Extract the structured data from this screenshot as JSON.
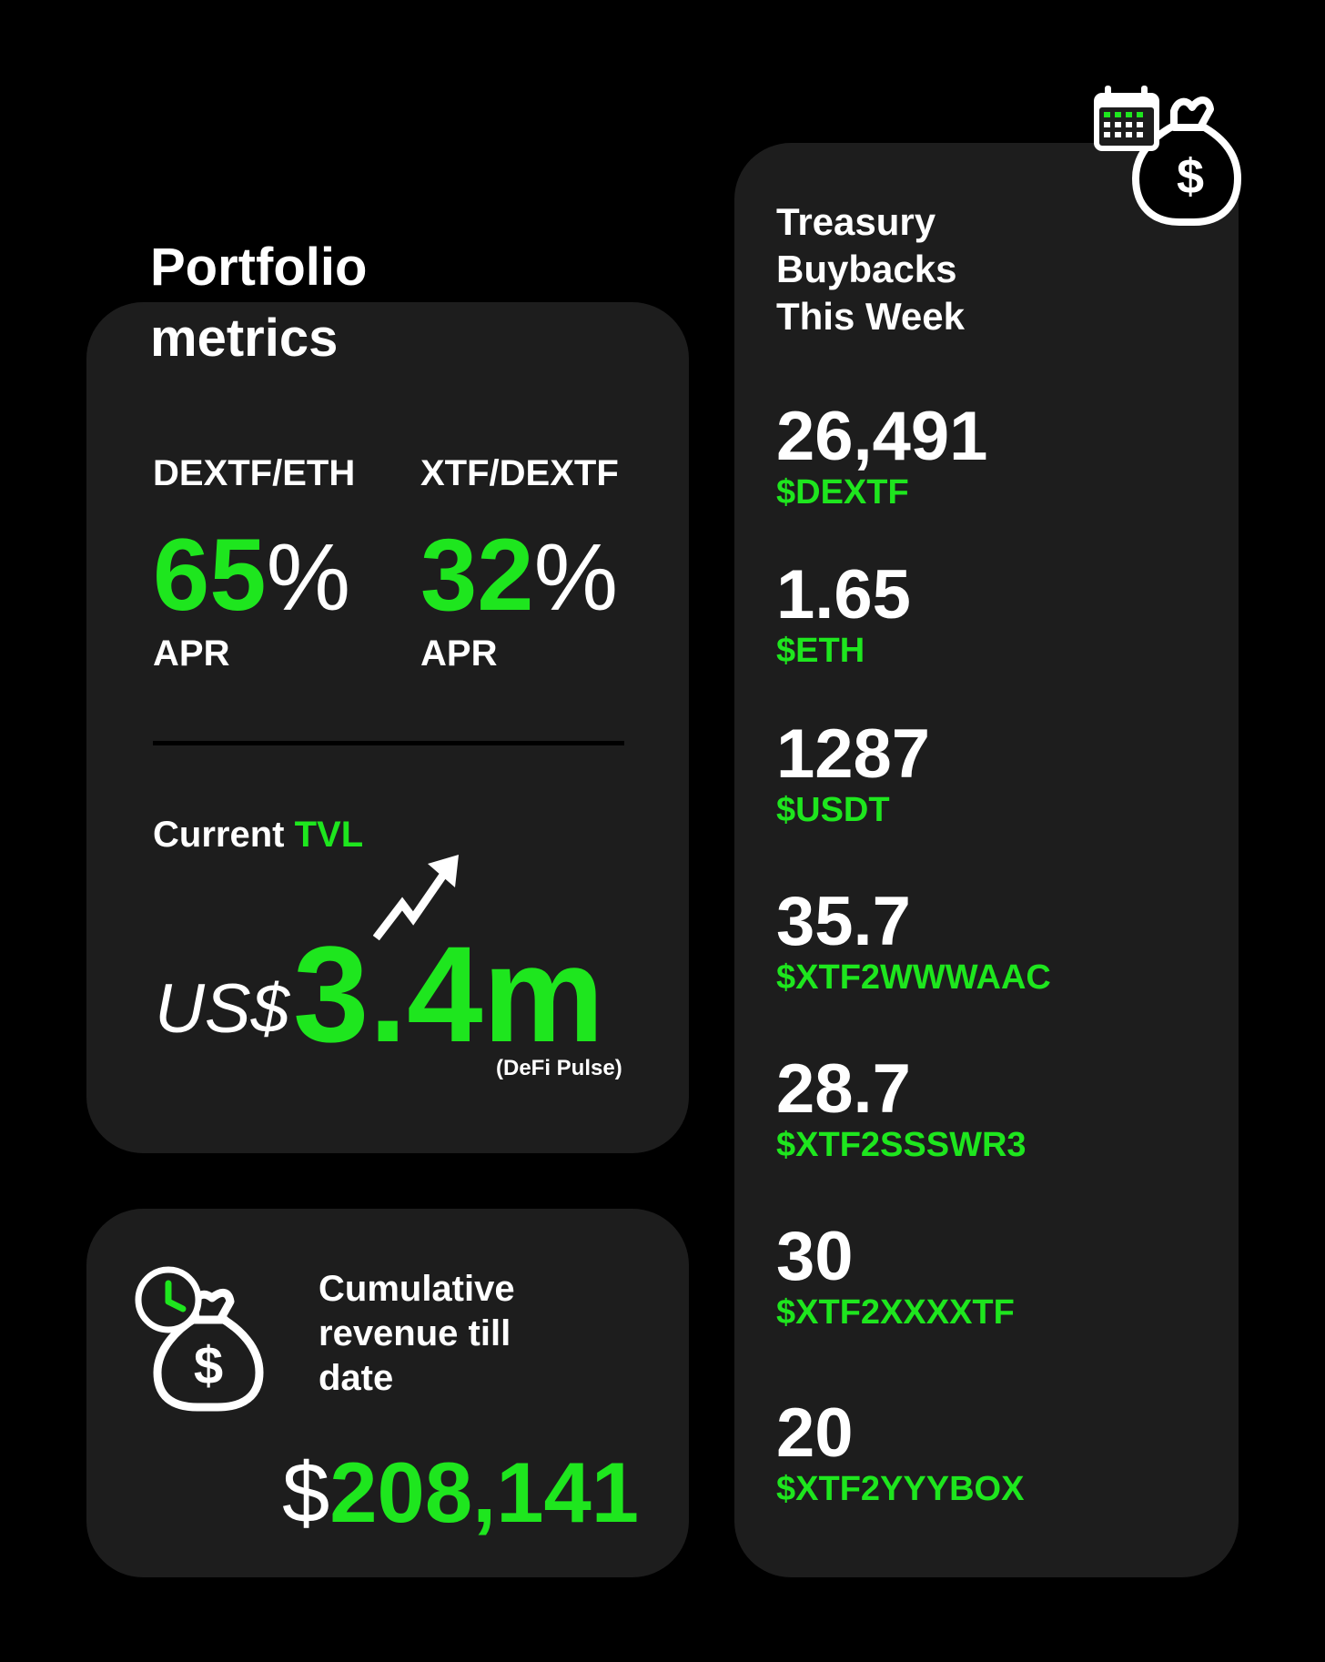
{
  "portfolio": {
    "title": "Portfolio metrics",
    "pairs": [
      {
        "name": "DEXTF/ETH",
        "apr_value": "65",
        "apr_unit": "%",
        "apr_label": "APR"
      },
      {
        "name": "XTF/DEXTF",
        "apr_value": "32",
        "apr_unit": "%",
        "apr_label": "APR"
      }
    ],
    "tvl": {
      "label_prefix": "Current",
      "label_highlight": "TVL",
      "currency": "US$",
      "value": "3.4m",
      "source": "(DeFi Pulse)"
    }
  },
  "revenue": {
    "label": "Cumulative revenue till date",
    "currency_symbol": "$",
    "value": "208,141"
  },
  "treasury": {
    "title": "Treasury Buybacks This Week",
    "buybacks": [
      {
        "amount": "26,491",
        "token": "$DEXTF"
      },
      {
        "amount": "1.65",
        "token": "$ETH"
      },
      {
        "amount": "1287",
        "token": "$USDT"
      },
      {
        "amount": "35.7",
        "token": "$XTF2WWWAAC"
      },
      {
        "amount": "28.7",
        "token": "$XTF2SSSWR3"
      },
      {
        "amount": "30",
        "token": "$XTF2XXXXTF"
      },
      {
        "amount": "20",
        "token": "$XTF2YYYBOX"
      }
    ]
  },
  "icons": {
    "trend": "trend-up-arrow-icon",
    "revenue": "money-bag-clock-icon",
    "treasury": "calendar-money-bag-icon"
  },
  "colors": {
    "background": "#000000",
    "card": "#1d1d1d",
    "accent_green": "#1ee61e",
    "text": "#ffffff"
  }
}
